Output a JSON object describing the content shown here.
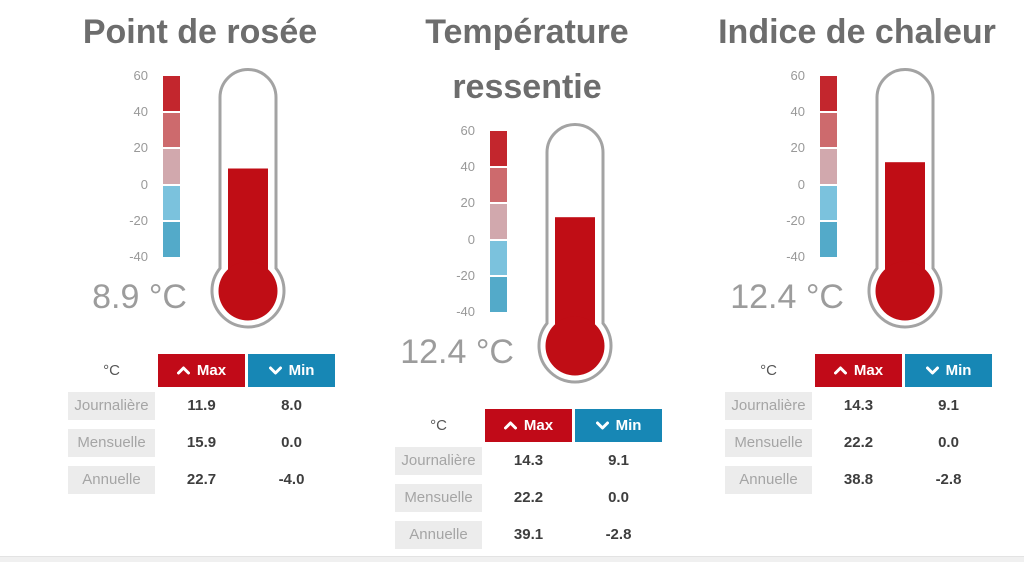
{
  "colors": {
    "accent_red": "#c10a18",
    "accent_blue": "#1787b5",
    "thermo_fill": "#c00d15",
    "thermo_outline": "#a3a3a3",
    "row_label_bg": "#ececec",
    "scale_segments": [
      "#c3262d",
      "#cd6a6d",
      "#d1a8ad",
      "#7bc2dd",
      "#53aac9"
    ]
  },
  "scale": {
    "max": 60,
    "min": -40,
    "ticks": [
      "60",
      "40",
      "20",
      "0",
      "-20",
      "-40"
    ]
  },
  "widgets": [
    {
      "title": "Point de rosée",
      "value": 8.9,
      "value_label": "8.9 °C",
      "table": {
        "unit_header": "°C",
        "max_label": "Max",
        "min_label": "Min",
        "rows": [
          {
            "label": "Journalière",
            "max": "11.9",
            "min": "8.0"
          },
          {
            "label": "Mensuelle",
            "max": "15.9",
            "min": "0.0"
          },
          {
            "label": "Annuelle",
            "max": "22.7",
            "min": "-4.0"
          }
        ]
      }
    },
    {
      "title": "Température ressentie",
      "value": 12.4,
      "value_label": "12.4 °C",
      "table": {
        "unit_header": "°C",
        "max_label": "Max",
        "min_label": "Min",
        "rows": [
          {
            "label": "Journalière",
            "max": "14.3",
            "min": "9.1"
          },
          {
            "label": "Mensuelle",
            "max": "22.2",
            "min": "0.0"
          },
          {
            "label": "Annuelle",
            "max": "39.1",
            "min": "-2.8"
          }
        ]
      }
    },
    {
      "title": "Indice de chaleur",
      "value": 12.4,
      "value_label": "12.4 °C",
      "table": {
        "unit_header": "°C",
        "max_label": "Max",
        "min_label": "Min",
        "rows": [
          {
            "label": "Journalière",
            "max": "14.3",
            "min": "9.1"
          },
          {
            "label": "Mensuelle",
            "max": "22.2",
            "min": "0.0"
          },
          {
            "label": "Annuelle",
            "max": "38.8",
            "min": "-2.8"
          }
        ]
      }
    }
  ],
  "chart_data": [
    {
      "type": "gauge",
      "title": "Point de rosée",
      "unit": "°C",
      "current": 8.9,
      "axis": {
        "min": -40,
        "max": 60,
        "ticks": [
          60,
          40,
          20,
          0,
          -20,
          -40
        ]
      },
      "table": {
        "columns": [
          "°C",
          "Max",
          "Min"
        ],
        "rows": [
          [
            "Journalière",
            11.9,
            8.0
          ],
          [
            "Mensuelle",
            15.9,
            0.0
          ],
          [
            "Annuelle",
            22.7,
            -4.0
          ]
        ]
      }
    },
    {
      "type": "gauge",
      "title": "Température ressentie",
      "unit": "°C",
      "current": 12.4,
      "axis": {
        "min": -40,
        "max": 60,
        "ticks": [
          60,
          40,
          20,
          0,
          -20,
          -40
        ]
      },
      "table": {
        "columns": [
          "°C",
          "Max",
          "Min"
        ],
        "rows": [
          [
            "Journalière",
            14.3,
            9.1
          ],
          [
            "Mensuelle",
            22.2,
            0.0
          ],
          [
            "Annuelle",
            39.1,
            -2.8
          ]
        ]
      }
    },
    {
      "type": "gauge",
      "title": "Indice de chaleur",
      "unit": "°C",
      "current": 12.4,
      "axis": {
        "min": -40,
        "max": 60,
        "ticks": [
          60,
          40,
          20,
          0,
          -20,
          -40
        ]
      },
      "table": {
        "columns": [
          "°C",
          "Max",
          "Min"
        ],
        "rows": [
          [
            "Journalière",
            14.3,
            9.1
          ],
          [
            "Mensuelle",
            22.2,
            0.0
          ],
          [
            "Annuelle",
            38.8,
            -2.8
          ]
        ]
      }
    }
  ]
}
